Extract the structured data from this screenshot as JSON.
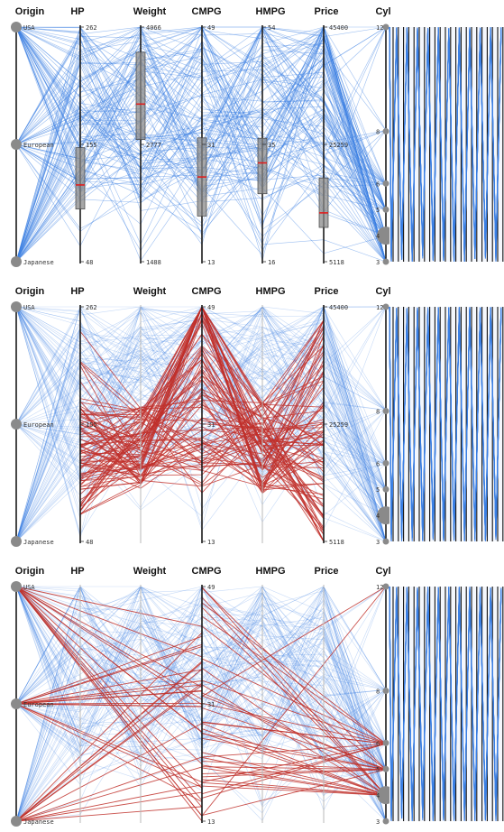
{
  "chart_data": [
    {
      "type": "parallel-coordinates",
      "panel": "top",
      "axes": [
        "Origin",
        "HP",
        "Weight",
        "CMPG",
        "HMPG",
        "Price",
        "Cyl"
      ],
      "tick_labels": {
        "Origin": [
          "USA",
          "European",
          "Japanese"
        ],
        "HP": [
          "262",
          "155",
          "48"
        ],
        "Weight": [
          "4066",
          "2777",
          "1488"
        ],
        "CMPG": [
          "49",
          "31",
          "13"
        ],
        "HMPG": [
          "54",
          "35",
          "16"
        ],
        "Price": [
          "45400",
          "25259",
          "5118"
        ],
        "Cyl": [
          "12",
          "8",
          "6",
          "5",
          "4",
          "3"
        ]
      },
      "ranges": {
        "HP": [
          48,
          262
        ],
        "Weight": [
          1488,
          4066
        ],
        "CMPG": [
          13,
          49
        ],
        "HMPG": [
          16,
          54
        ],
        "Price": [
          5118,
          45400
        ],
        "Cyl": [
          3,
          12
        ]
      },
      "boxplots": {
        "HP": {
          "q1": 96,
          "median": 118,
          "q3": 152
        },
        "Weight": {
          "q1": 2830,
          "median": 3220,
          "q3": 3790
        },
        "CMPG": {
          "q1": 20,
          "median": 26,
          "q3": 32
        },
        "HMPG": {
          "q1": 27,
          "median": 32,
          "q3": 36
        },
        "Price": {
          "q1": 11000,
          "median": 13500,
          "q3": 19500
        }
      },
      "highlight": "none",
      "colors": {
        "context": "#3b7fe4",
        "highlight": "#c0302a",
        "median": "#e01e1e"
      }
    },
    {
      "type": "parallel-coordinates",
      "panel": "middle",
      "axes": [
        "Origin",
        "HP",
        "Weight",
        "CMPG",
        "HMPG",
        "Price",
        "Cyl"
      ],
      "tick_labels": {
        "Origin": [
          "USA",
          "European",
          "Japanese"
        ],
        "HP": [
          "262",
          "155",
          "48"
        ],
        "CMPG": [
          "49",
          "31",
          "13"
        ],
        "Price": [
          "45400",
          "25259",
          "5118"
        ],
        "Cyl": [
          "12",
          "8",
          "6",
          "5",
          "4",
          "3"
        ]
      },
      "highlight": "HP to Price polylines",
      "colors": {
        "context": "#3b7fe4",
        "highlight": "#c0302a"
      }
    },
    {
      "type": "parallel-coordinates",
      "panel": "bottom",
      "axes": [
        "Origin",
        "HP",
        "Weight",
        "CMPG",
        "HMPG",
        "Price",
        "Cyl"
      ],
      "tick_labels": {
        "Origin": [
          "USA",
          "European",
          "Japanese"
        ],
        "CMPG": [
          "49",
          "31",
          "13"
        ],
        "Cyl": [
          "12",
          "8",
          "6",
          "5",
          "4",
          "3"
        ]
      },
      "highlight": "Origin to CMPG and CMPG to Cyl polylines",
      "colors": {
        "context": "#3b7fe4",
        "highlight": "#c0302a"
      }
    }
  ]
}
